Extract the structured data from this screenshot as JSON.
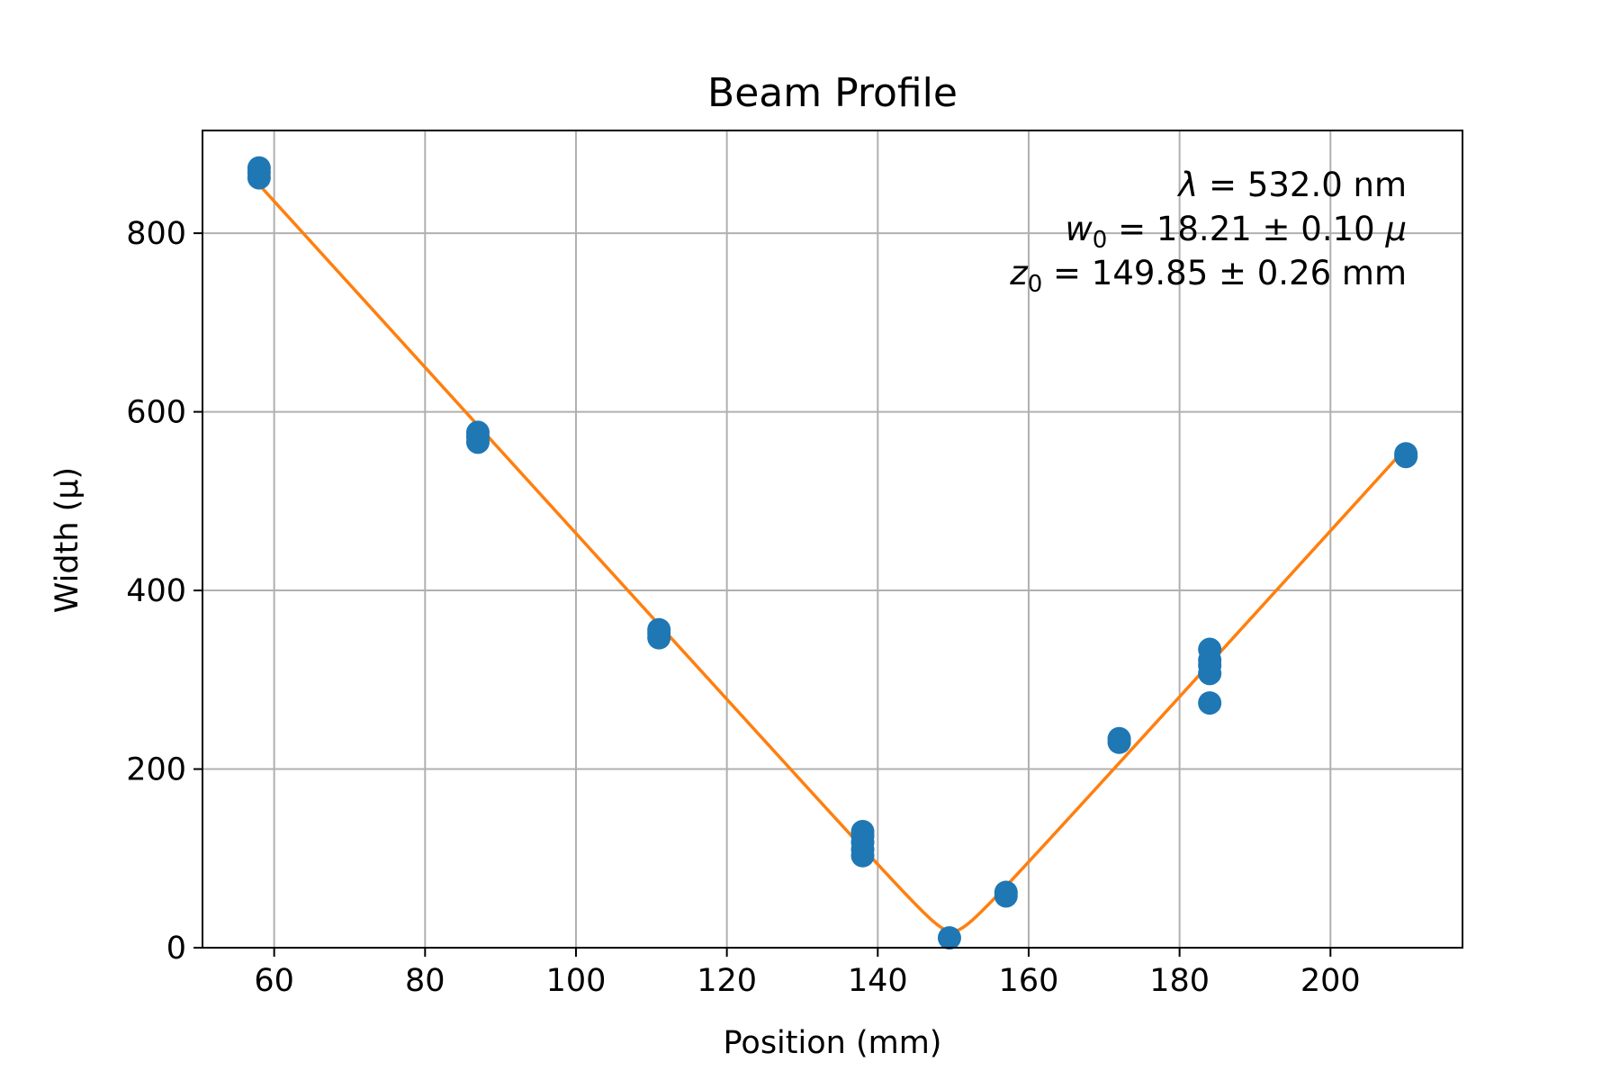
{
  "chart_data": {
    "type": "scatter",
    "title": "Beam Profile",
    "xlabel": "Position (mm)",
    "ylabel": "Width (μ)",
    "xlim": [
      50.5,
      217.5
    ],
    "ylim": [
      0,
      915
    ],
    "xticks": [
      60,
      80,
      100,
      120,
      140,
      160,
      180,
      200
    ],
    "yticks": [
      0,
      200,
      400,
      600,
      800
    ],
    "grid": true,
    "legend": "none",
    "series": [
      {
        "kind": "scatter",
        "color": "#1f77b4",
        "points": [
          [
            58,
            873
          ],
          [
            58,
            868
          ],
          [
            58,
            862
          ],
          [
            87,
            577
          ],
          [
            87,
            572
          ],
          [
            87,
            566
          ],
          [
            111,
            356
          ],
          [
            111,
            352
          ],
          [
            111,
            347
          ],
          [
            138,
            130
          ],
          [
            138,
            125
          ],
          [
            138,
            118
          ],
          [
            138,
            110
          ],
          [
            138,
            103
          ],
          [
            149.5,
            11
          ],
          [
            157,
            62
          ],
          [
            157,
            58
          ],
          [
            172,
            234
          ],
          [
            172,
            230
          ],
          [
            184,
            334
          ],
          [
            184,
            322
          ],
          [
            184,
            316
          ],
          [
            184,
            307
          ],
          [
            184,
            274
          ],
          [
            210,
            553
          ],
          [
            210,
            550
          ]
        ]
      },
      {
        "kind": "line",
        "color": "#ff7f0e",
        "model": "gaussian-beam-fit",
        "wavelength_nm": 532.0,
        "w0": 18.21,
        "z0": 149.85,
        "x_range": [
          58,
          210
        ]
      }
    ],
    "annotation": {
      "position": "top-right",
      "lambda_symbol": "λ",
      "lambda_text": " = 532.0 nm",
      "w_symbol": "w",
      "w_sub": "0",
      "w_text": " = 18.21 ± 0.10 ",
      "w_unit": "μ",
      "z_symbol": "z",
      "z_sub": "0",
      "z_text": " = 149.85 ± 0.26 mm"
    }
  }
}
